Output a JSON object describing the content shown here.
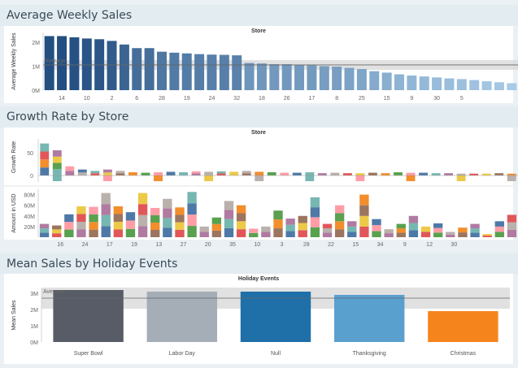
{
  "sections": {
    "s1": "Average Weekly Sales",
    "s2": "Growth Rate by Store",
    "s3": "Mean Sales by Holiday Events"
  },
  "chart_data": [
    {
      "type": "bar",
      "title": "Store",
      "ylabel": "Average Weekly Sales",
      "reference_line": {
        "label": "Average",
        "value": 1.05
      },
      "ylim": [
        0,
        2.4
      ],
      "yticks": [
        "0M",
        "1M",
        "2M"
      ],
      "xticks": [
        "14",
        "10",
        "2",
        "6",
        "28",
        "19",
        "24",
        "32",
        "18",
        "26",
        "17",
        "8",
        "25",
        "15",
        "9",
        "30",
        "5"
      ],
      "values": [
        2.25,
        2.25,
        2.2,
        2.15,
        2.12,
        2.05,
        1.9,
        1.75,
        1.75,
        1.6,
        1.56,
        1.53,
        1.5,
        1.48,
        1.47,
        1.45,
        1.13,
        1.11,
        1.08,
        1.08,
        1.05,
        1.04,
        1.0,
        0.98,
        0.93,
        0.88,
        0.79,
        0.73,
        0.66,
        0.61,
        0.57,
        0.53,
        0.49,
        0.46,
        0.42,
        0.37,
        0.33,
        0.29
      ]
    },
    {
      "type": "bar",
      "title": "Store",
      "ylabel": "Growth Rate",
      "yticks": [
        "0",
        "50"
      ],
      "values": [
        70,
        55,
        20,
        13,
        10,
        13,
        10,
        7,
        6,
        7,
        8,
        7,
        9,
        8,
        9,
        8,
        10,
        8,
        7,
        6,
        6,
        7,
        5,
        6,
        5,
        5,
        6,
        5,
        7,
        6,
        6,
        5,
        5,
        4,
        4,
        4,
        5,
        4
      ]
    },
    {
      "type": "bar",
      "ylabel": "Amount in USD",
      "yticks": [
        "20M",
        "40M",
        "60M",
        "80M"
      ],
      "xticks": [
        "16",
        "24",
        "17",
        "19",
        "13",
        "27",
        "20",
        "35",
        "10",
        "3",
        "28",
        "22",
        "15",
        "34",
        "9",
        "12",
        "30"
      ],
      "values": [
        25,
        22,
        43,
        58,
        57,
        83,
        58,
        47,
        83,
        55,
        72,
        56,
        85,
        20,
        37,
        68,
        60,
        16,
        20,
        50,
        35,
        40,
        75,
        25,
        60,
        30,
        80,
        34,
        15,
        25,
        40,
        20,
        26,
        10,
        18,
        25,
        6,
        30,
        42
      ]
    },
    {
      "type": "bar",
      "title": "Holiday Events",
      "ylabel": "Mean Sales",
      "reference_line": {
        "label": "Average",
        "value": 2.7
      },
      "ylim": [
        0,
        3.2
      ],
      "yticks": [
        "0M",
        "1M",
        "2M",
        "3M"
      ],
      "categories": [
        "Super Bowl",
        "Labor Day",
        "Null",
        "Thanksgiving",
        "Christmas"
      ],
      "values": [
        3.2,
        3.1,
        3.1,
        2.9,
        1.9
      ],
      "colors": [
        "#575c66",
        "#a5adb7",
        "#1f6fa8",
        "#5aa0cf",
        "#f6841c"
      ]
    }
  ]
}
